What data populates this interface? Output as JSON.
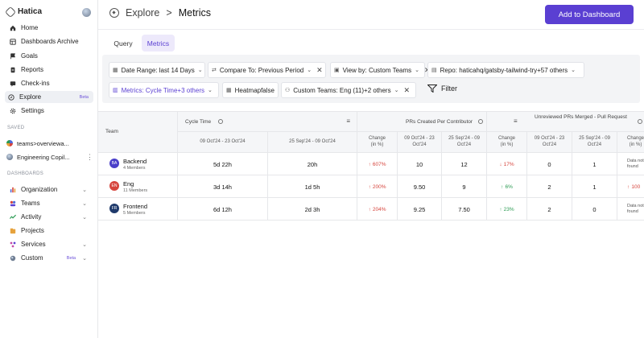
{
  "app": {
    "name": "Hatica"
  },
  "sidebar": {
    "nav": [
      {
        "label": "Home",
        "icon": "home-icon"
      },
      {
        "label": "Dashboards Archive",
        "icon": "grid-icon"
      },
      {
        "label": "Goals",
        "icon": "flag-icon"
      },
      {
        "label": "Reports",
        "icon": "document-icon"
      },
      {
        "label": "Check-ins",
        "icon": "chat-icon"
      },
      {
        "label": "Explore",
        "icon": "compass-icon",
        "badge": "Beta",
        "active": true
      },
      {
        "label": "Settings",
        "icon": "gear-icon"
      }
    ],
    "saved_title": "SAVED",
    "saved": [
      {
        "label": "teams>overviewa..."
      },
      {
        "label": "Engineering Copil..."
      }
    ],
    "dashboards_title": "DASHBOARDS",
    "dashboards": [
      {
        "label": "Organization",
        "icon": "org-icon",
        "color": "#4f6bd8"
      },
      {
        "label": "Teams",
        "icon": "teams-icon",
        "color": "#5a3fd2"
      },
      {
        "label": "Activity",
        "icon": "activity-icon",
        "color": "#2a9a52"
      },
      {
        "label": "Projects",
        "icon": "projects-icon",
        "color": "#e6a23c"
      },
      {
        "label": "Services",
        "icon": "services-icon",
        "color": "#c44aa8"
      },
      {
        "label": "Custom",
        "icon": "custom-icon",
        "color": "#4a5160",
        "badge": "Beta"
      }
    ]
  },
  "header": {
    "breadcrumb_root": "Explore",
    "breadcrumb_sep": ">",
    "breadcrumb_current": "Metrics",
    "add_button": "Add to Dashboard"
  },
  "tabs": {
    "query": "Query",
    "metrics": "Metrics"
  },
  "filters": {
    "date_range": "Date Range: last 14 Days",
    "compare_to": "Compare To: Previous Period",
    "view_by": "View by: Custom Teams",
    "repo": "Repo: haticahq/gatsby-tailwind-try+57 others",
    "metrics": "Metrics: Cycle Time+3 others",
    "heatmap": "Heatmapfalse",
    "custom_teams": "Custom Teams: Eng (11)+2 others",
    "filter_button": "Filter"
  },
  "table": {
    "team_header": "Team",
    "groups": {
      "cycle_time": "Cycle Time",
      "prs_created": "PRs Created Per Contributor",
      "unreviewed": "Unreviewed PRs Merged - Pull Request"
    },
    "sub": {
      "ct_current": "09 Oct'24 - 23 Oct'24",
      "ct_previous": "25 Sep'24 - 09 Oct'24",
      "ct_change": "Change (in %)",
      "pr_current": "09 Oct'24 - 23 Oct'24",
      "pr_previous": "25 Sep'24 - 09 Oct'24",
      "pr_change": "Change (in %)",
      "un_current": "09 Oct'24 - 23 Oct'24",
      "un_previous": "25 Sep'24 - 09 Oct'24",
      "un_change": "Change (in %)"
    },
    "rows": [
      {
        "initials": "BA",
        "badge_color": "#4a3fc9",
        "name": "Backend",
        "members": "4 Members",
        "ct_cur": "5d 22h",
        "ct_prev": "20h",
        "ct_chg": "607%",
        "pr_cur": "10",
        "pr_prev": "12",
        "pr_chg": "17%",
        "un_cur": "0",
        "un_prev": "1",
        "un_chg": "Data not found"
      },
      {
        "initials": "EN",
        "badge_color": "#d6453d",
        "name": "Eng",
        "members": "11 Members",
        "ct_cur": "3d 14h",
        "ct_prev": "1d 5h",
        "ct_chg": "200%",
        "pr_cur": "9.50",
        "pr_prev": "9",
        "pr_chg": "6%",
        "un_cur": "2",
        "un_prev": "1",
        "un_chg": "100"
      },
      {
        "initials": "FR",
        "badge_color": "#1f3a6b",
        "name": "Frontend",
        "members": "5 Members",
        "ct_cur": "6d 12h",
        "ct_prev": "2d 3h",
        "ct_chg": "204%",
        "pr_cur": "9.25",
        "pr_prev": "7.50",
        "pr_chg": "23%",
        "un_cur": "2",
        "un_prev": "0",
        "un_chg": "Data not found"
      }
    ]
  }
}
